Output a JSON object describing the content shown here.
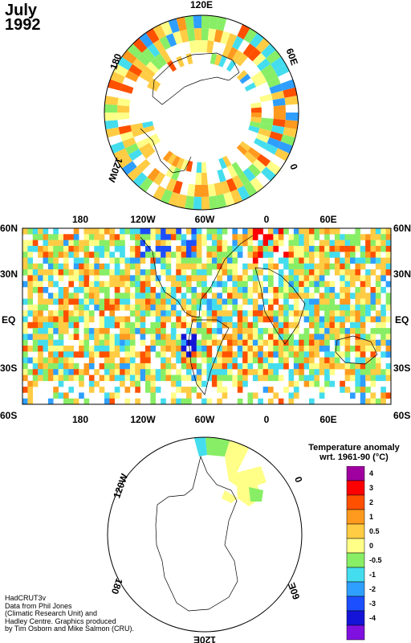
{
  "title": {
    "month": "July",
    "year": "1992"
  },
  "north_polar": {
    "labels": {
      "top": "120E",
      "upper_left": "180",
      "upper_right": "60E",
      "lower_left": "120W",
      "lower_right": "0"
    }
  },
  "world_map": {
    "top_lon_labels": [
      "180",
      "120W",
      "60W",
      "0",
      "60E"
    ],
    "bottom_lon_labels": [
      "180",
      "120W",
      "60W",
      "0",
      "60E"
    ],
    "lat_labels": [
      "60N",
      "30N",
      "EQ",
      "30S",
      "60S"
    ]
  },
  "south_polar": {
    "labels": {
      "upper_left": "120W",
      "upper_right": "0",
      "lower_left": "180",
      "lower_right": "60E",
      "bottom": "120E"
    }
  },
  "legend": {
    "title_line1": "Temperature anomaly",
    "title_line2": "wrt. 1961-90  (°C)",
    "entries": [
      {
        "label": "4",
        "color": "#a000a0"
      },
      {
        "label": "3",
        "color": "#ff0000"
      },
      {
        "label": "2",
        "color": "#ff5000"
      },
      {
        "label": "1",
        "color": "#ff9a1e"
      },
      {
        "label": "0.5",
        "color": "#ffcc44"
      },
      {
        "label": "0",
        "color": "#ffff88"
      },
      {
        "label": "-0.5",
        "color": "#88ee66"
      },
      {
        "label": "-1",
        "color": "#44ddee"
      },
      {
        "label": "-2",
        "color": "#2f9fff"
      },
      {
        "label": "-3",
        "color": "#1c4fff"
      },
      {
        "label": "-4",
        "color": "#1414d8"
      },
      {
        "label": "",
        "color": "#8010e0"
      }
    ]
  },
  "credit": {
    "line1": "HadCRUT3v",
    "line2": "Data from Phil Jones",
    "line3": "(Climatic Research Unit) and",
    "line4": "Hadley Centre.  Graphics produced",
    "line5": "by Tim Osborn and Mike Salmon (CRU)."
  }
}
